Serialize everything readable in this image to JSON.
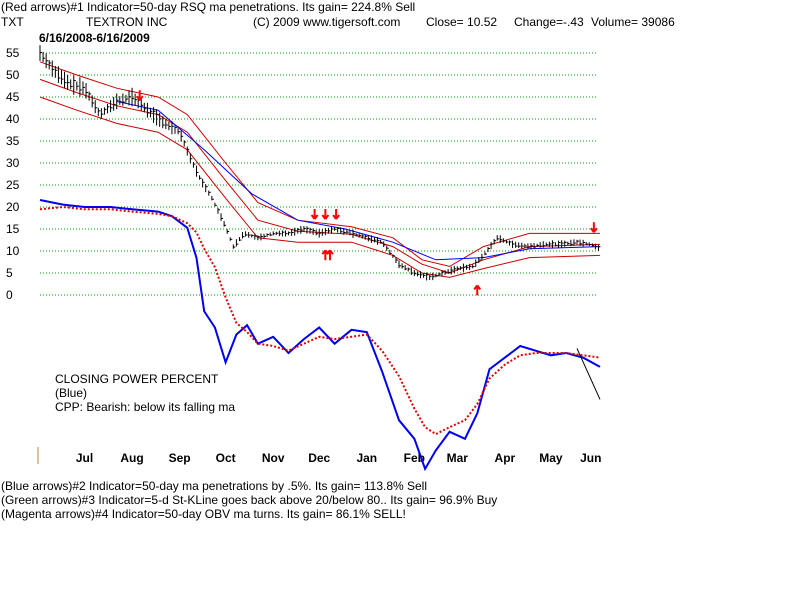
{
  "header": {
    "line1": "(Red arrows)#1 Indicator=50-day RSQ ma penetrations. Its gain= 224.8% Sell",
    "symbol": "TXT",
    "company": "TEXTRON INC",
    "copyright": "(C) 2009 www.tigersoft.com",
    "close": "Close=  10.52",
    "change": "Change=-.43",
    "volume": "Volume= 39086",
    "date_range": "6/16/2008-6/16/2009"
  },
  "annotation": {
    "line1": "CLOSING POWER PERCENT",
    "line2": "(Blue)",
    "line3": "CPP: Bearish: below its falling ma"
  },
  "footer": {
    "line1": "(Blue arrows)#2 Indicator=50-day ma penetrations by .5%. Its gain= 113.8% Sell",
    "line2": "(Green arrows)#3 Indicator=5-d St-KLine goes back above 20/below 80.. Its gain= 96.9% Buy",
    "line3": "(Magenta arrows)#4 Indicator=50-day OBV ma turns. Its gain= 86.1% SELL!"
  },
  "colors": {
    "price": "#000000",
    "bands": "#cc0000",
    "blue_ma": "#0000ff",
    "cpp": "#0000ee",
    "cpp_ma": "#dd0000",
    "arrows": "#ff0000",
    "grid": "#009900"
  },
  "chart_data": {
    "type": "line",
    "title": "TEXTRON INC",
    "ylim": [
      0,
      55
    ],
    "y_ticks": [
      "55",
      "50",
      "45",
      "40",
      "35",
      "30",
      "25",
      "20",
      "15",
      "10",
      "5",
      "0"
    ],
    "x_tick_labels": [
      "Jul",
      "Aug",
      "Sep",
      "Oct",
      "Nov",
      "Dec",
      "Jan",
      "Feb",
      "Mar",
      "Apr",
      "May",
      "Jun"
    ],
    "grid": "horizontal dotted",
    "series": [
      {
        "name": "TXT",
        "kind": "price",
        "x": [
          "2008-06-16",
          "2008-06-25",
          "2008-07-05",
          "2008-07-15",
          "2008-07-25",
          "2008-08-05",
          "2008-08-15",
          "2008-08-25",
          "2008-09-05",
          "2008-09-15",
          "2008-09-22",
          "2008-09-29",
          "2008-10-06",
          "2008-10-13",
          "2008-10-20",
          "2008-10-27",
          "2008-11-05",
          "2008-11-15",
          "2008-11-25",
          "2008-12-05",
          "2008-12-15",
          "2008-12-25",
          "2009-01-05",
          "2009-01-15",
          "2009-01-25",
          "2009-02-05",
          "2009-02-15",
          "2009-02-25",
          "2009-03-06",
          "2009-03-15",
          "2009-03-25",
          "2009-04-01",
          "2009-04-10",
          "2009-04-20",
          "2009-05-01",
          "2009-05-10",
          "2009-05-20",
          "2009-06-01",
          "2009-06-10",
          "2009-06-16"
        ],
        "y": [
          55,
          51,
          48,
          47,
          41,
          44,
          45,
          42,
          39,
          37,
          31,
          26,
          22,
          17,
          11,
          14,
          13,
          14,
          14,
          15,
          14,
          15,
          14,
          13,
          12,
          7,
          5,
          4,
          5,
          6,
          6.5,
          9,
          13,
          11.5,
          11,
          11.5,
          11.5,
          12,
          11.5,
          10.5
        ]
      },
      {
        "name": "",
        "kind": "upper band",
        "x": [
          "2008-06-16",
          "2008-07-10",
          "2008-08-05",
          "2008-09-01",
          "2008-09-20",
          "2008-10-15",
          "2008-11-05",
          "2008-12-01",
          "2009-01-05",
          "2009-02-01",
          "2009-02-20",
          "2009-03-10",
          "2009-04-01",
          "2009-05-01",
          "2009-06-16"
        ],
        "y": [
          53,
          50,
          47,
          45,
          41,
          30,
          21,
          17,
          15.5,
          13,
          8,
          6.5,
          11,
          14,
          14
        ]
      },
      {
        "name": "",
        "kind": "lower band",
        "x": [
          "2008-06-16",
          "2008-07-10",
          "2008-08-05",
          "2008-09-01",
          "2008-09-20",
          "2008-10-15",
          "2008-11-05",
          "2008-12-01",
          "2009-01-05",
          "2009-02-01",
          "2009-02-20",
          "2009-03-10",
          "2009-04-01",
          "2009-05-01",
          "2009-06-16"
        ],
        "y": [
          45,
          42,
          39,
          37,
          33,
          22,
          13,
          12,
          12,
          9,
          5,
          4,
          6,
          8.5,
          9
        ]
      },
      {
        "name": "",
        "kind": "50-day ma",
        "x": [
          "2008-06-16",
          "2008-07-10",
          "2008-08-05",
          "2008-09-01",
          "2008-09-20",
          "2008-10-15",
          "2008-11-05",
          "2008-12-01",
          "2009-01-05",
          "2009-02-01",
          "2009-02-20",
          "2009-03-10",
          "2009-04-01",
          "2009-05-01",
          "2009-06-16"
        ],
        "y": [
          49,
          46,
          43,
          41,
          37,
          26,
          17,
          14.5,
          13.8,
          11,
          7,
          5,
          8,
          11,
          11.5
        ]
      },
      {
        "name": "",
        "kind": "blue ma",
        "x": [
          "2008-08-05",
          "2008-09-01",
          "2008-10-01",
          "2008-11-01",
          "2008-12-01",
          "2009-01-01",
          "2009-02-01",
          "2009-03-01",
          "2009-04-01",
          "2009-05-01",
          "2009-06-16"
        ],
        "y": [
          44,
          42,
          33,
          23,
          17,
          15,
          12,
          8,
          8.5,
          10.5,
          11
        ]
      }
    ],
    "closing_power_percent": {
      "name": "CLOSING POWER PERCENT",
      "dates": [
        "2008-06-16",
        "2008-07-01",
        "2008-07-15",
        "2008-08-01",
        "2008-08-15",
        "2008-09-01",
        "2008-09-10",
        "2008-09-20",
        "2008-09-26",
        "2008-10-01",
        "2008-10-08",
        "2008-10-15",
        "2008-10-22",
        "2008-10-29",
        "2008-11-05",
        "2008-11-15",
        "2008-11-25",
        "2008-12-05",
        "2008-12-15",
        "2008-12-25",
        "2009-01-05",
        "2009-01-15",
        "2009-01-25",
        "2009-02-05",
        "2009-02-15",
        "2009-02-22",
        "2009-03-01",
        "2009-03-10",
        "2009-03-20",
        "2009-03-28",
        "2009-04-05",
        "2009-04-15",
        "2009-04-25",
        "2009-05-05",
        "2009-05-15",
        "2009-05-25",
        "2009-06-05",
        "2009-06-16"
      ],
      "cpp": [
        100,
        98,
        97,
        97,
        96,
        95,
        93,
        88,
        75,
        52,
        45,
        30,
        42,
        46,
        38,
        41,
        34,
        40,
        45,
        38,
        44,
        43,
        26,
        5,
        -3,
        -16,
        -8,
        0,
        -3,
        8,
        27,
        32,
        37,
        35,
        33,
        34,
        32,
        28
      ],
      "cpp_ma": [
        96,
        97,
        96,
        96,
        95,
        94,
        93,
        90,
        86,
        79,
        71,
        58,
        47,
        43,
        38,
        37,
        35,
        38,
        41,
        40,
        41,
        42,
        35,
        24,
        10,
        2,
        -1,
        2,
        5,
        12,
        23,
        29,
        33,
        34,
        34,
        34,
        33,
        32
      ],
      "trendline": [
        [
          "2009-06-01",
          36
        ],
        [
          "2009-06-16",
          14
        ]
      ]
    },
    "arrows": [
      {
        "date": "2008-08-20",
        "price": 42,
        "direction": "down"
      },
      {
        "date": "2008-12-12",
        "price": 15,
        "direction": "down"
      },
      {
        "date": "2008-12-19",
        "price": 15,
        "direction": "down"
      },
      {
        "date": "2008-12-26",
        "price": 15,
        "direction": "down"
      },
      {
        "date": "2008-12-19",
        "price": 12,
        "direction": "up"
      },
      {
        "date": "2008-12-22",
        "price": 12,
        "direction": "up"
      },
      {
        "date": "2009-03-28",
        "price": 4,
        "direction": "up"
      },
      {
        "date": "2009-06-12",
        "price": 12,
        "direction": "down"
      }
    ]
  }
}
